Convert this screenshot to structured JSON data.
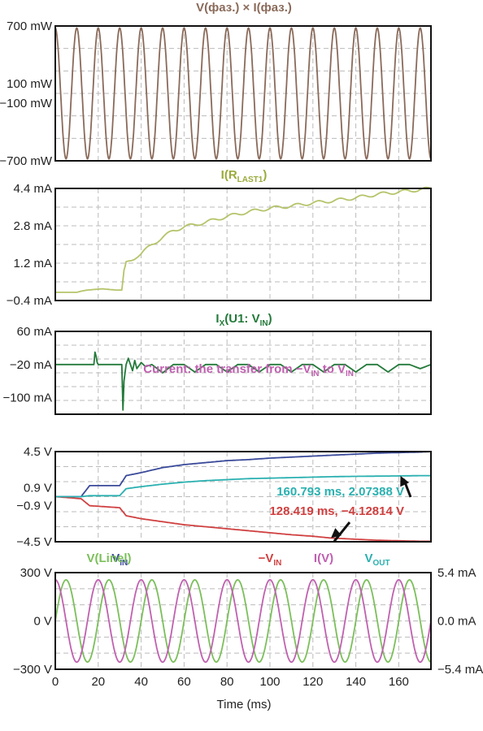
{
  "chart_data": [
    {
      "type": "line",
      "title": "V(фаз.) × I(фаз.)",
      "title_color": "#8a6a5a",
      "y_tick_labels": [
        "700 mW",
        "100 mW",
        "−100 mW",
        "−700 mW"
      ],
      "y_ticks": [
        700,
        100,
        -100,
        -700
      ],
      "ylim": [
        -700,
        700
      ],
      "xlim": [
        0,
        175
      ],
      "series": [
        {
          "color": "#8a6a5a",
          "kind": "sine",
          "amplitude_mW": 680,
          "frequency_hz": 100,
          "phase_deg": 90
        }
      ]
    },
    {
      "type": "line",
      "title": "I(R",
      "title_sub": "LAST1",
      "title_suffix": ")",
      "title_color": "#9aaa3a",
      "y_tick_labels": [
        "4.4 mA",
        "2.8 mA",
        "1.2 mA",
        "−0.4 mA"
      ],
      "y_ticks": [
        4.4,
        2.8,
        1.2,
        -0.4
      ],
      "ylim": [
        -0.4,
        4.4
      ],
      "xlim": [
        0,
        175
      ],
      "series": [
        {
          "color": "#b5c46a",
          "points": [
            [
              0,
              -0.05
            ],
            [
              10,
              -0.05
            ],
            [
              12,
              0.0
            ],
            [
              15,
              0.05
            ],
            [
              22,
              0.1
            ],
            [
              28,
              0.05
            ],
            [
              31,
              0.05
            ],
            [
              32,
              0.9
            ],
            [
              33,
              1.2
            ],
            [
              35,
              1.3
            ],
            [
              38,
              1.5
            ],
            [
              40,
              1.6
            ],
            [
              45,
              2.0
            ],
            [
              50,
              2.3
            ],
            [
              55,
              2.6
            ],
            [
              60,
              2.75
            ],
            [
              70,
              2.95
            ],
            [
              80,
              3.2
            ],
            [
              90,
              3.4
            ],
            [
              100,
              3.55
            ],
            [
              110,
              3.65
            ],
            [
              120,
              3.78
            ],
            [
              130,
              3.88
            ],
            [
              140,
              4.0
            ],
            [
              150,
              4.15
            ],
            [
              160,
              4.25
            ],
            [
              170,
              4.35
            ],
            [
              175,
              4.4
            ]
          ],
          "ripple": 0.07,
          "ripple_start": 33,
          "ripple_freq_hz": 100
        }
      ]
    },
    {
      "type": "line",
      "title": "I",
      "title_sub": "X",
      "title_mid": "(U1: V",
      "title_sub2": "IN",
      "title_suffix": ")",
      "title_color": "#237a3a",
      "y_tick_labels": [
        "60 mA",
        "−20 mA",
        "−100 mA"
      ],
      "y_ticks": [
        60,
        -20,
        -100
      ],
      "ylim": [
        -140,
        60
      ],
      "xlim": [
        0,
        175
      ],
      "annotation": {
        "text": "Current: the transfer from −V",
        "sub": "IN",
        "mid": " to V",
        "sub2": "IN",
        "color": "#c060b0",
        "x": 41,
        "y": -40
      },
      "series": [
        {
          "color": "#237a3a",
          "points": [
            [
              0,
              -20
            ],
            [
              18,
              -20
            ],
            [
              18.5,
              10
            ],
            [
              19,
              0
            ],
            [
              19.5,
              -15
            ],
            [
              20,
              -20
            ],
            [
              31,
              -20
            ],
            [
              31.5,
              -130
            ],
            [
              32,
              -60
            ],
            [
              33,
              -20
            ],
            [
              34,
              -5
            ],
            [
              36,
              -35
            ],
            [
              37,
              -10
            ],
            [
              38,
              -30
            ],
            [
              40,
              -15
            ],
            [
              42,
              -25
            ],
            [
              45,
              -20
            ],
            [
              50,
              -40
            ],
            [
              55,
              -20
            ],
            [
              60,
              -20
            ],
            [
              65,
              -38
            ],
            [
              70,
              -20
            ],
            [
              75,
              -20
            ],
            [
              80,
              -38
            ],
            [
              85,
              -20
            ],
            [
              90,
              -20
            ],
            [
              95,
              -38
            ],
            [
              100,
              -20
            ],
            [
              105,
              -20
            ],
            [
              110,
              -38
            ],
            [
              115,
              -20
            ],
            [
              120,
              -20
            ],
            [
              125,
              -38
            ],
            [
              130,
              -20
            ],
            [
              135,
              -20
            ],
            [
              140,
              -38
            ],
            [
              145,
              -20
            ],
            [
              150,
              -20
            ],
            [
              155,
              -38
            ],
            [
              160,
              -20
            ],
            [
              165,
              -20
            ],
            [
              170,
              -30
            ],
            [
              175,
              -20
            ]
          ]
        }
      ]
    },
    {
      "type": "line",
      "legend": [
        {
          "label": "V",
          "sub": "IN",
          "color": "#3a4a9a",
          "x": 30
        },
        {
          "label": "−V",
          "sub": "IN",
          "color": "#d04040",
          "x": 100
        },
        {
          "label": "V",
          "sub": "OUT",
          "color": "#2ab0b0",
          "x": 150
        }
      ],
      "y_tick_labels": [
        "4.5 V",
        "0.9 V",
        "−0.9 V",
        "−4.5 V"
      ],
      "y_ticks": [
        4.5,
        0.9,
        -0.9,
        -4.5
      ],
      "ylim": [
        -4.5,
        4.5
      ],
      "xlim": [
        0,
        175
      ],
      "series": [
        {
          "name": "V_IN",
          "color": "#3a4a9a",
          "points": [
            [
              0,
              0
            ],
            [
              12,
              0
            ],
            [
              16,
              1.1
            ],
            [
              30,
              1.1
            ],
            [
              33,
              2.1
            ],
            [
              40,
              2.4
            ],
            [
              50,
              2.9
            ],
            [
              60,
              3.2
            ],
            [
              70,
              3.4
            ],
            [
              80,
              3.6
            ],
            [
              90,
              3.7
            ],
            [
              100,
              3.85
            ],
            [
              110,
              3.95
            ],
            [
              120,
              4.05
            ],
            [
              130,
              4.15
            ],
            [
              140,
              4.25
            ],
            [
              150,
              4.35
            ],
            [
              160,
              4.4
            ],
            [
              170,
              4.45
            ],
            [
              175,
              4.5
            ]
          ]
        },
        {
          "name": "-V_IN",
          "color": "#d04040",
          "points": [
            [
              0,
              0
            ],
            [
              12,
              -0.2
            ],
            [
              16,
              -0.9
            ],
            [
              30,
              -1.1
            ],
            [
              33,
              -1.9
            ],
            [
              40,
              -2.2
            ],
            [
              50,
              -2.5
            ],
            [
              60,
              -2.8
            ],
            [
              70,
              -3.0
            ],
            [
              80,
              -3.2
            ],
            [
              90,
              -3.4
            ],
            [
              100,
              -3.6
            ],
            [
              110,
              -3.8
            ],
            [
              120,
              -3.95
            ],
            [
              128.419,
              -4.12814
            ],
            [
              140,
              -4.25
            ],
            [
              150,
              -4.35
            ],
            [
              160,
              -4.4
            ],
            [
              170,
              -4.45
            ],
            [
              175,
              -4.45
            ]
          ]
        },
        {
          "name": "V_OUT",
          "color": "#2ab0b0",
          "points": [
            [
              0,
              0
            ],
            [
              12,
              0
            ],
            [
              16,
              0.1
            ],
            [
              30,
              0.1
            ],
            [
              33,
              0.8
            ],
            [
              40,
              1.0
            ],
            [
              50,
              1.25
            ],
            [
              60,
              1.45
            ],
            [
              70,
              1.6
            ],
            [
              80,
              1.7
            ],
            [
              90,
              1.8
            ],
            [
              100,
              1.85
            ],
            [
              110,
              1.9
            ],
            [
              120,
              1.95
            ],
            [
              130,
              2.0
            ],
            [
              140,
              2.03
            ],
            [
              150,
              2.05
            ],
            [
              160.793,
              2.07388
            ],
            [
              170,
              2.1
            ],
            [
              175,
              2.1
            ]
          ]
        }
      ],
      "annotations": [
        {
          "text": "160.793 ms, 2.07388 V",
          "color": "#2ab0b0",
          "x": 160.793,
          "y": 2.07388
        },
        {
          "text": "128.419 ms, −4.12814 V",
          "color": "#d04040",
          "x": 128.419,
          "y": -4.12814
        }
      ]
    },
    {
      "type": "line",
      "legend": [
        {
          "label": "V(Linel)",
          "color": "#7bbf5a",
          "x": 25
        },
        {
          "label": "I(V)",
          "color": "#c060b0",
          "x": 125
        }
      ],
      "y_tick_labels": [
        "300 V",
        "0 V",
        "−300 V"
      ],
      "y_ticks": [
        300,
        0,
        -300
      ],
      "ylim": [
        -300,
        300
      ],
      "y2_tick_labels": [
        "5.4  mA",
        "0.0 mA",
        "−5.4 mA"
      ],
      "y2lim": [
        -5.4,
        5.4
      ],
      "xlim": [
        0,
        175
      ],
      "x_ticks": [
        0,
        20,
        40,
        60,
        80,
        100,
        120,
        140,
        160
      ],
      "x_tick_labels": [
        "0",
        "20",
        "40",
        "60",
        "80",
        "100",
        "120",
        "140",
        "160"
      ],
      "xlabel": "Time (ms)",
      "series": [
        {
          "name": "V(Linel)",
          "color": "#7bbf5a",
          "kind": "sine",
          "amplitude_V": 255,
          "frequency_hz": 50,
          "phase_deg": 0
        },
        {
          "name": "I(V)",
          "color": "#c060b0",
          "kind": "sine",
          "amplitude_mA": 4.6,
          "frequency_hz": 50,
          "phase_deg": 90
        }
      ]
    }
  ]
}
